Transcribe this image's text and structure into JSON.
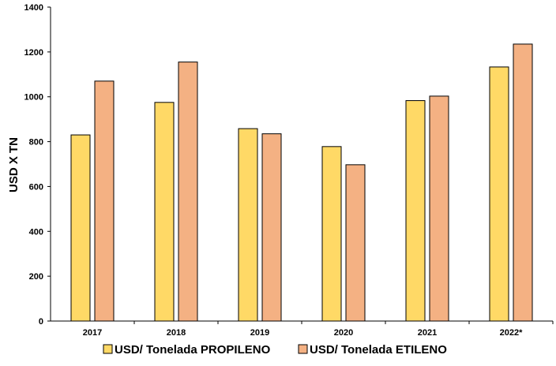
{
  "chart_data": {
    "type": "bar",
    "title": "",
    "xlabel": "",
    "ylabel": "USD X TN",
    "categories": [
      "2017",
      "2018",
      "2019",
      "2020",
      "2021",
      "2022*"
    ],
    "series": [
      {
        "name": "USD/ Tonelada PROPILENO",
        "values": [
          830,
          975,
          858,
          778,
          983,
          1133
        ],
        "color": "#FFD966"
      },
      {
        "name": "USD/ Tonelada ETILENO",
        "values": [
          1070,
          1155,
          835,
          697,
          1003,
          1235
        ],
        "color": "#F4B183"
      }
    ],
    "ylim": [
      0,
      1400
    ],
    "yticks": [
      0,
      200,
      400,
      600,
      800,
      1000,
      1200,
      1400
    ],
    "grid": false,
    "legend_position": "bottom"
  }
}
